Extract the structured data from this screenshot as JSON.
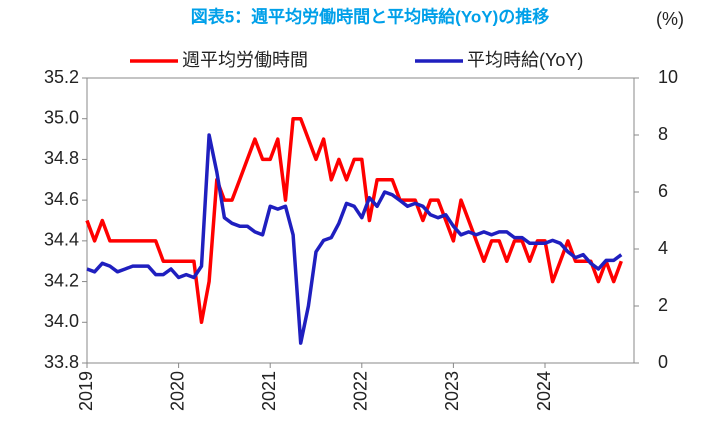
{
  "chart_data": {
    "type": "line",
    "title": "図表5：週平均労働時間と平均時給(YoY)の推移",
    "y2_unit": "(%)",
    "categories": [
      "2019",
      null,
      null,
      null,
      null,
      null,
      null,
      null,
      null,
      null,
      null,
      null,
      "2020",
      null,
      null,
      null,
      null,
      null,
      null,
      null,
      null,
      null,
      null,
      null,
      "2021",
      null,
      null,
      null,
      null,
      null,
      null,
      null,
      null,
      null,
      null,
      null,
      "2022",
      null,
      null,
      null,
      null,
      null,
      null,
      null,
      null,
      null,
      null,
      null,
      "2023",
      null,
      null,
      null,
      null,
      null,
      null,
      null,
      null,
      null,
      null,
      null,
      "2024",
      null,
      null,
      null,
      null,
      null,
      null,
      null,
      null,
      null,
      null
    ],
    "series": [
      {
        "name": "週平均労働時間",
        "color": "#ff0000",
        "axis": "y",
        "values": [
          34.5,
          34.4,
          34.5,
          34.4,
          34.4,
          34.4,
          34.4,
          34.4,
          34.4,
          34.4,
          34.3,
          34.3,
          34.3,
          34.3,
          34.3,
          34.0,
          34.2,
          34.7,
          34.6,
          34.6,
          34.7,
          34.8,
          34.9,
          34.8,
          34.8,
          34.9,
          34.6,
          35.0,
          35.0,
          34.9,
          34.8,
          34.9,
          34.7,
          34.8,
          34.7,
          34.8,
          34.8,
          34.5,
          34.7,
          34.7,
          34.7,
          34.6,
          34.6,
          34.6,
          34.5,
          34.6,
          34.6,
          34.5,
          34.4,
          34.6,
          34.5,
          34.4,
          34.3,
          34.4,
          34.4,
          34.3,
          34.4,
          34.4,
          34.3,
          34.4,
          34.4,
          34.2,
          34.3,
          34.4,
          34.3,
          34.3,
          34.3,
          34.2,
          34.3,
          34.2,
          34.3
        ]
      },
      {
        "name": "平均時給(YoY)",
        "color": "#1f1fbf",
        "axis": "y2",
        "values": [
          3.3,
          3.2,
          3.5,
          3.4,
          3.2,
          3.3,
          3.4,
          3.4,
          3.4,
          3.1,
          3.1,
          3.3,
          3.0,
          3.1,
          3.0,
          3.4,
          8.0,
          6.7,
          5.1,
          4.9,
          4.8,
          4.8,
          4.6,
          4.5,
          5.5,
          5.4,
          5.5,
          4.5,
          0.7,
          2.0,
          3.9,
          4.3,
          4.4,
          4.9,
          5.6,
          5.5,
          5.1,
          5.8,
          5.5,
          6.0,
          5.9,
          5.7,
          5.5,
          5.6,
          5.5,
          5.2,
          5.1,
          5.2,
          4.8,
          4.5,
          4.6,
          4.5,
          4.6,
          4.5,
          4.6,
          4.6,
          4.4,
          4.4,
          4.2,
          4.2,
          4.2,
          4.3,
          4.2,
          3.9,
          3.7,
          3.8,
          3.5,
          3.3,
          3.6,
          3.6,
          3.8
        ]
      }
    ],
    "ylim": [
      33.8,
      35.2
    ],
    "yticks": [
      33.8,
      {
        "value": 34,
        "label": "34.0"
      },
      34.2,
      34.4,
      34.6,
      34.8,
      {
        "value": 35,
        "label": "35.0"
      },
      35.2
    ],
    "y2lim": [
      0,
      10
    ],
    "y2ticks": [
      0,
      2,
      4,
      6,
      8,
      10
    ],
    "legend": "top",
    "grid": false
  }
}
